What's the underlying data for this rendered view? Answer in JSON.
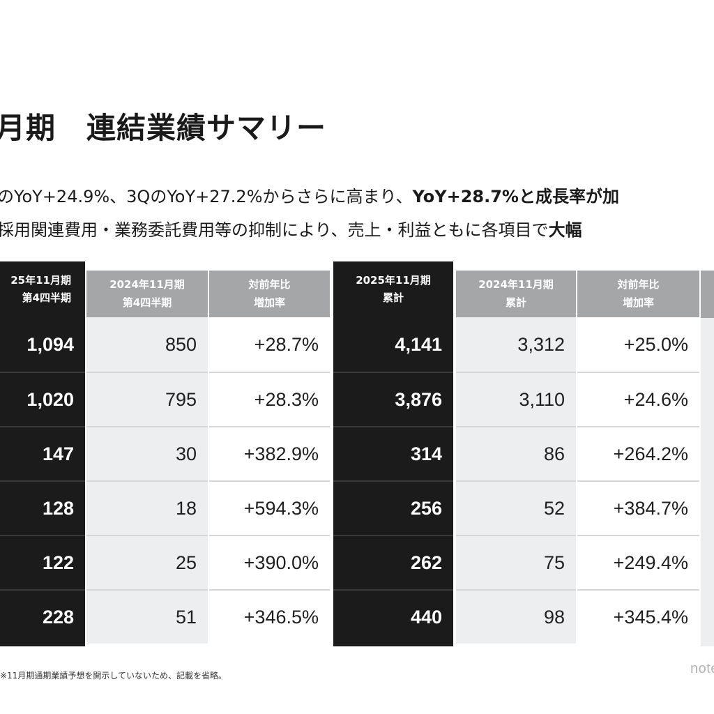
{
  "title": {
    "prefix": "月期",
    "main": "連結業績サマリー"
  },
  "lines": {
    "line1_a": "のYoY+24.9%、3QのYoY+27.2%からさらに高まり、",
    "line1_b": "YoY+28.7%と成長率が加",
    "line2_a": "採用関連費用・業務委託費用等の抑制により、売上・利益ともに各項目で",
    "line2_b": "大幅"
  },
  "table": {
    "columns": [
      {
        "head1": "25年11月期",
        "head2": "第4四半期",
        "values": [
          "1,094",
          "1,020",
          "147",
          "128",
          "122",
          "228"
        ]
      },
      {
        "head1": "2024年11月期",
        "head2": "第4四半期",
        "values": [
          "850",
          "795",
          "30",
          "18",
          "25",
          "51"
        ]
      },
      {
        "head1": "対前年比",
        "head2": "増加率",
        "values": [
          "+28.7%",
          "+28.3%",
          "+382.9%",
          "+594.3%",
          "+390.0%",
          "+346.5%"
        ]
      },
      {
        "head1": "2025年11月期",
        "head2": "累計",
        "values": [
          "4,141",
          "3,876",
          "314",
          "256",
          "262",
          "440"
        ]
      },
      {
        "head1": "2024年11月期",
        "head2": "累計",
        "values": [
          "3,312",
          "3,110",
          "86",
          "52",
          "75",
          "98"
        ]
      },
      {
        "head1": "対前年比",
        "head2": "増加率",
        "values": [
          "+25.0%",
          "+24.6%",
          "+264.2%",
          "+384.7%",
          "+249.4%",
          "+345.4%"
        ]
      }
    ]
  },
  "footnote": "※11月期通期業績予想を開示していないため、記載を省略。",
  "logo": "note",
  "colors": {
    "dark_column": "#1b1b1b",
    "header_grey": "#a5a6a8",
    "light_cell": "#eceeef"
  }
}
